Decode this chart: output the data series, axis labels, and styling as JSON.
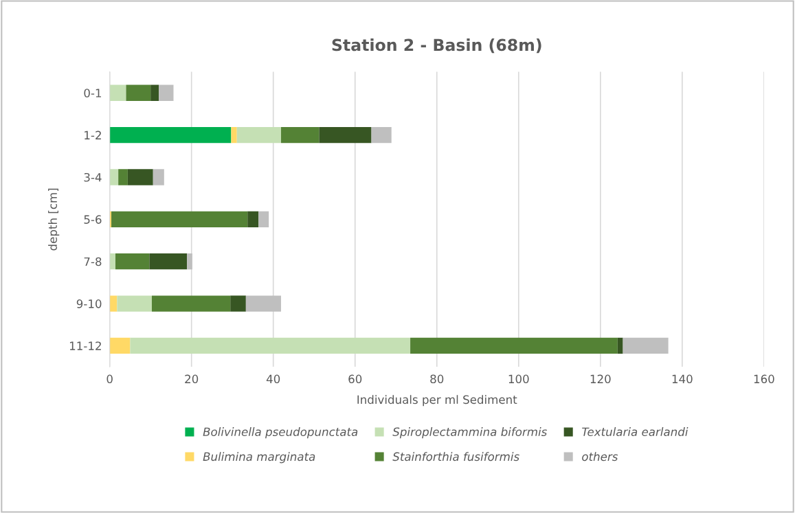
{
  "chart_data": {
    "type": "bar",
    "orientation": "horizontal",
    "stacked": true,
    "title": "Station 2 - Basin (68m)",
    "xlabel": "Individuals per ml Sediment",
    "ylabel": "depth [cm]",
    "categories": [
      "0-1",
      "1-2",
      "3-4",
      "5-6",
      "7-8",
      "9-10",
      "11-12"
    ],
    "series": [
      {
        "name": "Bolivinella pseudopunctata",
        "color": "#00b050",
        "values": [
          0,
          29.7,
          0,
          0,
          0,
          0,
          0
        ]
      },
      {
        "name": "Bulimina marginata",
        "color": "#ffd966",
        "values": [
          0,
          1.4,
          0,
          0.4,
          0,
          1.8,
          5.0
        ]
      },
      {
        "name": "Spiroplectammina biformis",
        "color": "#c5e0b4",
        "values": [
          4.0,
          10.8,
          2.1,
          0,
          1.4,
          8.5,
          68.5
        ]
      },
      {
        "name": "Stainforthia fusiformis",
        "color": "#548235",
        "values": [
          6.0,
          9.3,
          2.3,
          33.3,
          8.3,
          19.2,
          50.7
        ]
      },
      {
        "name": "Textularia earlandi",
        "color": "#375623",
        "values": [
          2.0,
          12.8,
          6.2,
          2.7,
          9.2,
          3.8,
          1.3
        ]
      },
      {
        "name": "others",
        "color": "#bfbfbf",
        "values": [
          3.6,
          4.9,
          2.7,
          2.5,
          1.3,
          8.6,
          11.1
        ]
      }
    ],
    "xlim": [
      0,
      160
    ],
    "xticks": [
      0,
      20,
      40,
      60,
      80,
      100,
      120,
      140,
      160
    ],
    "grid": "x",
    "legend": "bottom"
  }
}
